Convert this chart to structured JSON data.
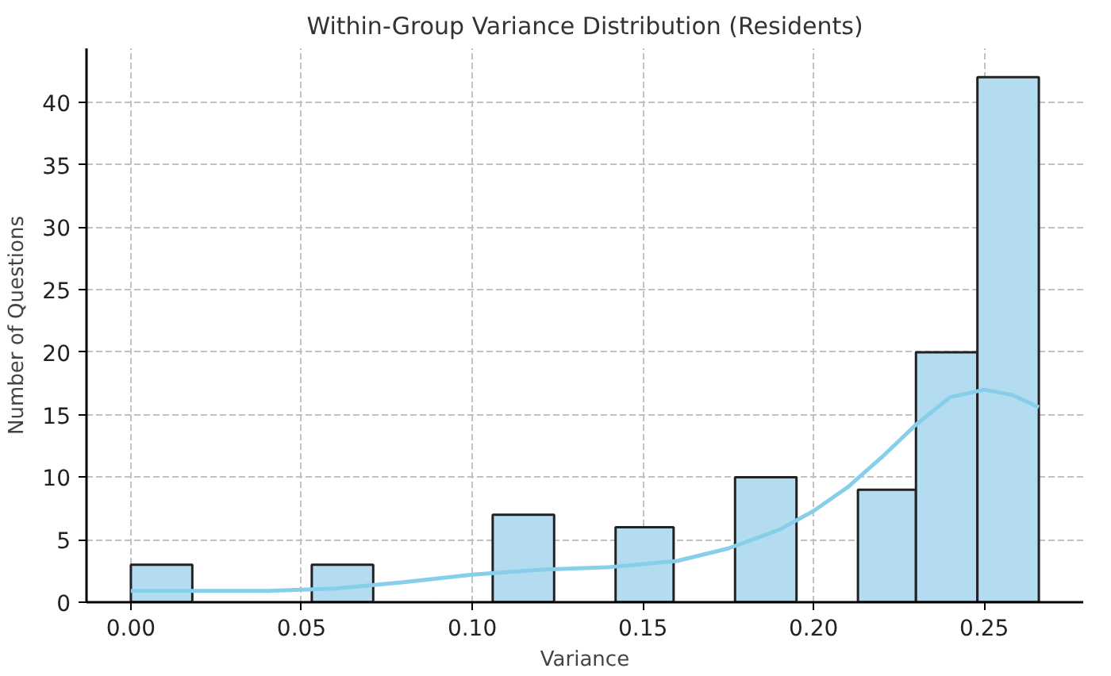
{
  "chart_data": {
    "type": "histogram",
    "title": "Within-Group Variance Distribution (Residents)",
    "xlabel": "Variance",
    "ylabel": "Number of Questions",
    "series": [
      {
        "color": "#b3dcf0",
        "bins": [
          0,
          0.018,
          0.035,
          0.053,
          0.071,
          0.089,
          0.106,
          0.124,
          0.142,
          0.159,
          0.177,
          0.195,
          0.213,
          0.23,
          0.248,
          0.266
        ],
        "values": [
          3,
          0,
          0,
          3,
          0,
          0,
          7,
          0,
          6,
          0,
          10,
          0,
          9,
          20,
          42
        ]
      },
      {
        "type": "line",
        "color": "#87ceeb",
        "x": [
          0,
          0.02,
          0.04,
          0.06,
          0.08,
          0.1,
          0.12,
          0.14,
          0.16,
          0.175,
          0.19,
          0.2,
          0.21,
          0.22,
          0.23,
          0.24,
          0.25,
          0.258,
          0.266
        ],
        "values": [
          0.9,
          0.9,
          0.9,
          1.1,
          1.6,
          2.2,
          2.6,
          2.8,
          3.3,
          4.3,
          5.8,
          7.3,
          9.2,
          11.6,
          14.2,
          16.4,
          17,
          16.6,
          15.6
        ]
      }
    ],
    "xlim": [
      -0.013,
      0.279
    ],
    "ylim": [
      0,
      44.3
    ],
    "xticks": [
      {
        "value": 0,
        "label": "0.00"
      },
      0.05,
      {
        "value": 0.1,
        "label": "0.10"
      },
      0.15,
      {
        "value": 0.2,
        "label": "0.20"
      },
      0.25
    ],
    "yticks": [
      0,
      5,
      10,
      15,
      20,
      25,
      30,
      35,
      40
    ],
    "grid": true
  }
}
